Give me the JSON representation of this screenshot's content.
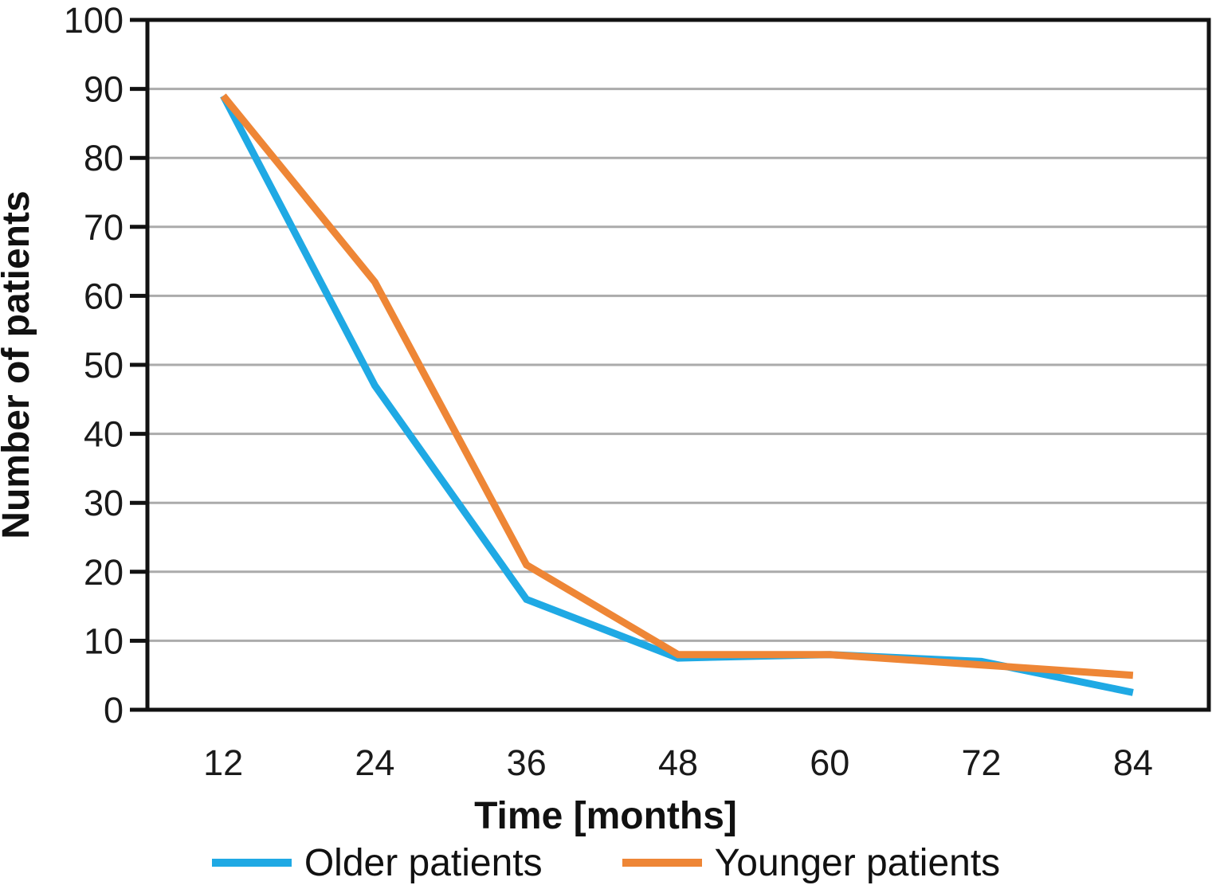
{
  "chart_data": {
    "type": "line",
    "xlabel": "Time [months]",
    "ylabel": "Number of patients",
    "categories": [
      "12",
      "24",
      "36",
      "48",
      "60",
      "72",
      "84"
    ],
    "series": [
      {
        "name": "Older patients",
        "color": "#1FA9E4",
        "values": [
          89,
          47,
          16,
          7.5,
          8,
          7,
          2.5
        ]
      },
      {
        "name": "Younger patients",
        "color": "#EE8636",
        "values": [
          89,
          62,
          21,
          8,
          8,
          6.5,
          5
        ]
      }
    ],
    "ylim": [
      0,
      100
    ],
    "ytick_step": 10,
    "grid": "horizontal",
    "legend_position": "bottom",
    "axis_color": "#121212",
    "grid_color": "#ABABAB"
  }
}
